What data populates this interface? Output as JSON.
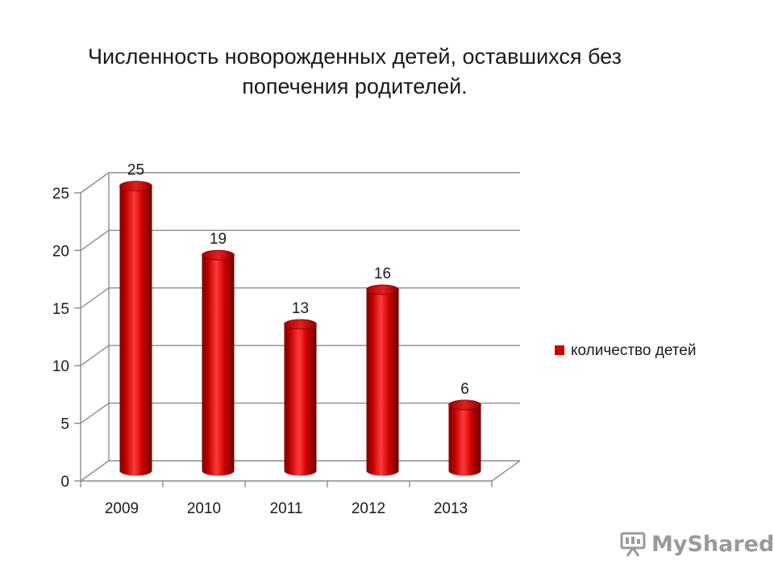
{
  "chart_data": {
    "type": "bar",
    "title_lines": [
      "Численность новорожденных детей, оставшихся без",
      "попечения родителей."
    ],
    "categories": [
      "2009",
      "2010",
      "2011",
      "2012",
      "2013"
    ],
    "series": [
      {
        "name": "количество детей",
        "values": [
          25,
          19,
          13,
          16,
          6
        ],
        "color": "#cc0000"
      }
    ],
    "data_labels": [
      "25",
      "19",
      "13",
      "16",
      "6"
    ],
    "y_ticks": [
      "0",
      "5",
      "10",
      "15",
      "20",
      "25"
    ],
    "ylim": [
      0,
      25
    ],
    "grid": true,
    "legend_position": "right",
    "bar_shape": "cylinder-3d"
  },
  "watermark": {
    "text": "MyShared",
    "icon": "presentation-board-icon",
    "color": "#9a9a9a"
  }
}
